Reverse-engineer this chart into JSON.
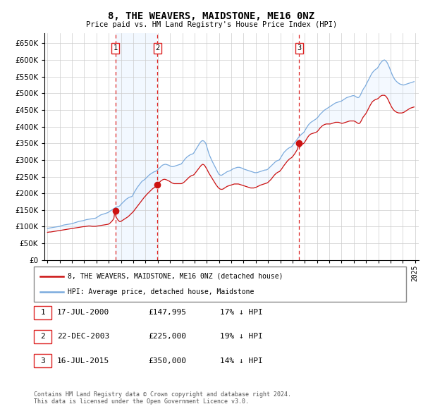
{
  "title": "8, THE WEAVERS, MAIDSTONE, ME16 0NZ",
  "subtitle": "Price paid vs. HM Land Registry's House Price Index (HPI)",
  "background_color": "#ffffff",
  "grid_color": "#cccccc",
  "hpi_color": "#7aaadd",
  "price_color": "#cc1111",
  "vline_color": "#dd2222",
  "shade_color": "#ddeeff",
  "legend_label_price": "8, THE WEAVERS, MAIDSTONE, ME16 0NZ (detached house)",
  "legend_label_hpi": "HPI: Average price, detached house, Maidstone",
  "footer": "Contains HM Land Registry data © Crown copyright and database right 2024.\nThis data is licensed under the Open Government Licence v3.0.",
  "sales": [
    {
      "num": 1,
      "date": "17-JUL-2000",
      "price": "£147,995",
      "pct": "17% ↓ HPI",
      "x_year": 2000.54
    },
    {
      "num": 2,
      "date": "22-DEC-2003",
      "price": "£225,000",
      "pct": "19% ↓ HPI",
      "x_year": 2003.97
    },
    {
      "num": 3,
      "date": "16-JUL-2015",
      "price": "£350,000",
      "pct": "14% ↓ HPI",
      "x_year": 2015.54
    }
  ],
  "ylim": [
    0,
    680000
  ],
  "ytick_vals": [
    0,
    50000,
    100000,
    150000,
    200000,
    250000,
    300000,
    350000,
    400000,
    450000,
    500000,
    550000,
    600000,
    650000
  ],
  "xlim": [
    1994.75,
    2025.3
  ],
  "xticks": [
    1995,
    1996,
    1997,
    1998,
    1999,
    2000,
    2001,
    2002,
    2003,
    2004,
    2005,
    2006,
    2007,
    2008,
    2009,
    2010,
    2011,
    2012,
    2013,
    2014,
    2015,
    2016,
    2017,
    2018,
    2019,
    2020,
    2021,
    2022,
    2023,
    2024,
    2025
  ]
}
